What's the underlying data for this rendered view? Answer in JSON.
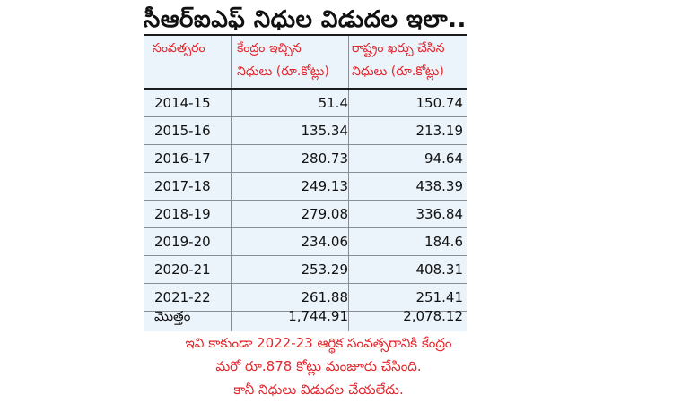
{
  "title": "సీఆర్ఐఎఫ్ నిధుల విడుదల ఇలా..",
  "headers": {
    "year": "సంవత్సరం",
    "central_l1": "కేంద్రం ఇచ్చిన",
    "central_l2": "నిధులు (రూ.కోట్లు)",
    "state_l1": "రాష్ట్రం ఖర్చు చేసిన",
    "state_l2": "నిధులు (రూ.కోట్లు)"
  },
  "rows": [
    {
      "year": "2014-15",
      "central": "51.4",
      "state": "150.74"
    },
    {
      "year": "2015-16",
      "central": "135.34",
      "state": "213.19"
    },
    {
      "year": "2016-17",
      "central": "280.73",
      "state": "94.64"
    },
    {
      "year": "2017-18",
      "central": "249.13",
      "state": "438.39"
    },
    {
      "year": "2018-19",
      "central": "279.08",
      "state": "336.84"
    },
    {
      "year": "2019-20",
      "central": "234.06",
      "state": "184.6"
    },
    {
      "year": "2020-21",
      "central": "253.29",
      "state": "408.31"
    },
    {
      "year": "2021-22",
      "central": "261.88",
      "state": "251.41"
    }
  ],
  "total": {
    "label": "మొత్తం",
    "central": "1,744.91",
    "state": "2,078.12"
  },
  "note": [
    "ఇవి కాకుండా 2022-23 ఆర్థిక సంవత్సరానికి కేంద్రం",
    "మరో రూ.878 కోట్లు మంజూరు చేసింది.",
    "కానీ నిధులు విడుదల చేయలేదు."
  ],
  "colors": {
    "accent": "#e3262d",
    "table_bg": "#ecf4fb",
    "text": "#111111"
  }
}
